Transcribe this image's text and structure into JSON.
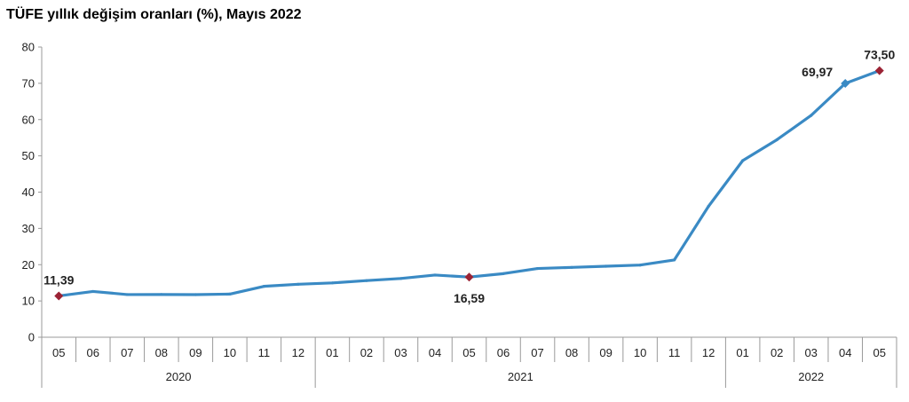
{
  "chart_data": {
    "type": "line",
    "title": "TÜFE yıllık değişim oranları (%), Mayıs 2022",
    "xlabel": "",
    "ylabel": "",
    "ylim": [
      0,
      80
    ],
    "yticks": [
      "0",
      "10",
      "20",
      "30",
      "40",
      "50",
      "60",
      "70",
      "80"
    ],
    "grid": false,
    "categories": [
      "05",
      "06",
      "07",
      "08",
      "09",
      "10",
      "11",
      "12",
      "01",
      "02",
      "03",
      "04",
      "05",
      "06",
      "07",
      "08",
      "09",
      "10",
      "11",
      "12",
      "01",
      "02",
      "03",
      "04",
      "05"
    ],
    "years": [
      {
        "label": "2020",
        "start": 0,
        "count": 8
      },
      {
        "label": "2021",
        "start": 8,
        "count": 12
      },
      {
        "label": "2022",
        "start": 20,
        "count": 5
      }
    ],
    "series": [
      {
        "color": "#3A8AC4",
        "values": [
          11.39,
          12.62,
          11.76,
          11.77,
          11.75,
          11.89,
          14.03,
          14.6,
          14.97,
          15.61,
          16.19,
          17.14,
          16.59,
          17.53,
          18.95,
          19.25,
          19.58,
          19.89,
          21.31,
          36.08,
          48.69,
          54.44,
          61.14,
          69.97,
          73.5
        ]
      }
    ],
    "annotations": [
      {
        "index": 0,
        "label": "11,39",
        "position": "above",
        "marker_color": "#9B2335"
      },
      {
        "index": 12,
        "label": "16,59",
        "position": "below",
        "marker_color": "#9B2335"
      },
      {
        "index": 23,
        "label": "69,97",
        "position": "left",
        "marker_color": "#3A8AC4"
      },
      {
        "index": 24,
        "label": "73,50",
        "position": "above",
        "marker_color": "#9B2335"
      }
    ]
  }
}
